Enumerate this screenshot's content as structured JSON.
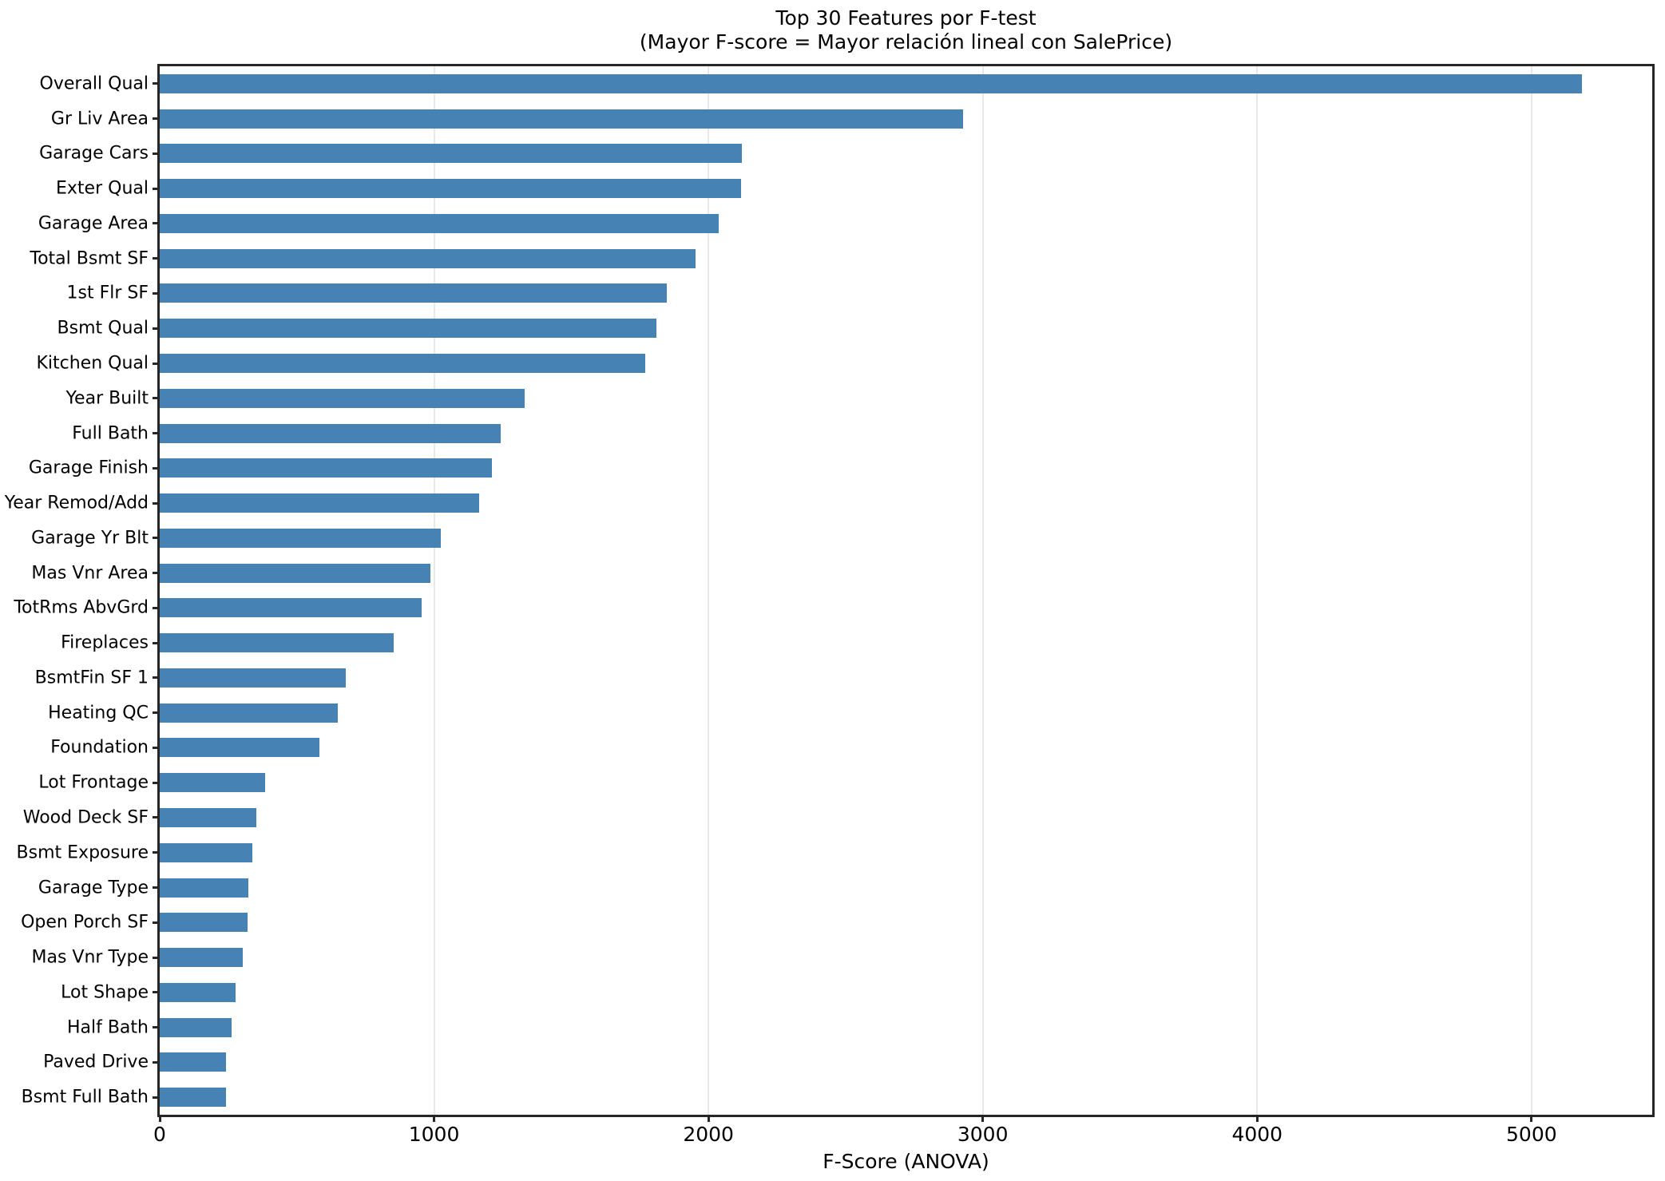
{
  "chart_data": {
    "type": "bar",
    "orientation": "horizontal",
    "title": "Top 30 Features por F-test",
    "subtitle": "(Mayor F-score = Mayor relación lineal con SalePrice)",
    "xlabel": "F-Score (ANOVA)",
    "ylabel": "",
    "xlim": [
      0,
      5440
    ],
    "xticks": [
      0,
      1000,
      2000,
      3000,
      4000,
      5000
    ],
    "grid": "vertical-only",
    "legend": "none",
    "categories": [
      "Overall Qual",
      "Gr Liv Area",
      "Garage Cars",
      "Exter Qual",
      "Garage Area",
      "Total Bsmt SF",
      "1st Flr SF",
      "Bsmt Qual",
      "Kitchen Qual",
      "Year Built",
      "Full Bath",
      "Garage Finish",
      "Year Remod/Add",
      "Garage Yr Blt",
      "Mas Vnr Area",
      "TotRms AbvGrd",
      "Fireplaces",
      "BsmtFin SF 1",
      "Heating QC",
      "Foundation",
      "Lot Frontage",
      "Wood Deck SF",
      "Bsmt Exposure",
      "Garage Type",
      "Open Porch SF",
      "Mas Vnr Type",
      "Lot Shape",
      "Half Bath",
      "Paved Drive",
      "Bsmt Full Bath"
    ],
    "values": [
      5184,
      2929,
      2122,
      2120,
      2038,
      1953,
      1848,
      1811,
      1770,
      1330,
      1243,
      1212,
      1164,
      1025,
      988,
      955,
      854,
      678,
      650,
      582,
      383,
      351,
      338,
      322,
      321,
      303,
      277,
      261,
      242,
      241
    ]
  },
  "colors": {
    "bar": "#4682b4",
    "grid": "#e6e8ea",
    "spine": "#262626",
    "text": "#000000",
    "background": "#ffffff"
  }
}
